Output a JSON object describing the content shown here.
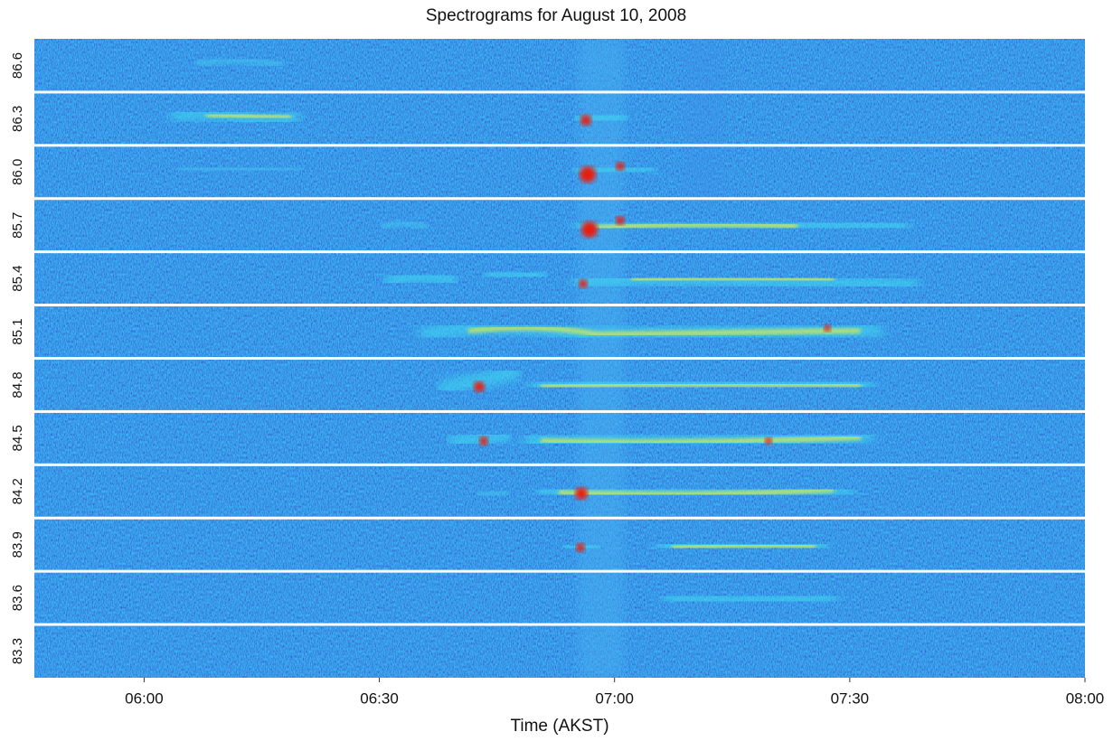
{
  "chart_data": {
    "type": "spectrogram",
    "title": "Spectrograms for August 10, 2008",
    "x_label": "Time (AKST)",
    "categories": [
      "86.6",
      "86.3",
      "86.0",
      "85.7",
      "85.4",
      "85.1",
      "84.8",
      "84.5",
      "84.2",
      "83.9",
      "83.6",
      "83.3"
    ],
    "xlim": [
      346,
      480
    ],
    "xticks": [
      {
        "value": 360,
        "label": "06:00"
      },
      {
        "value": 390,
        "label": "06:30"
      },
      {
        "value": 420,
        "label": "07:00"
      },
      {
        "value": 450,
        "label": "07:30"
      },
      {
        "value": 480,
        "label": "08:00"
      }
    ]
  }
}
